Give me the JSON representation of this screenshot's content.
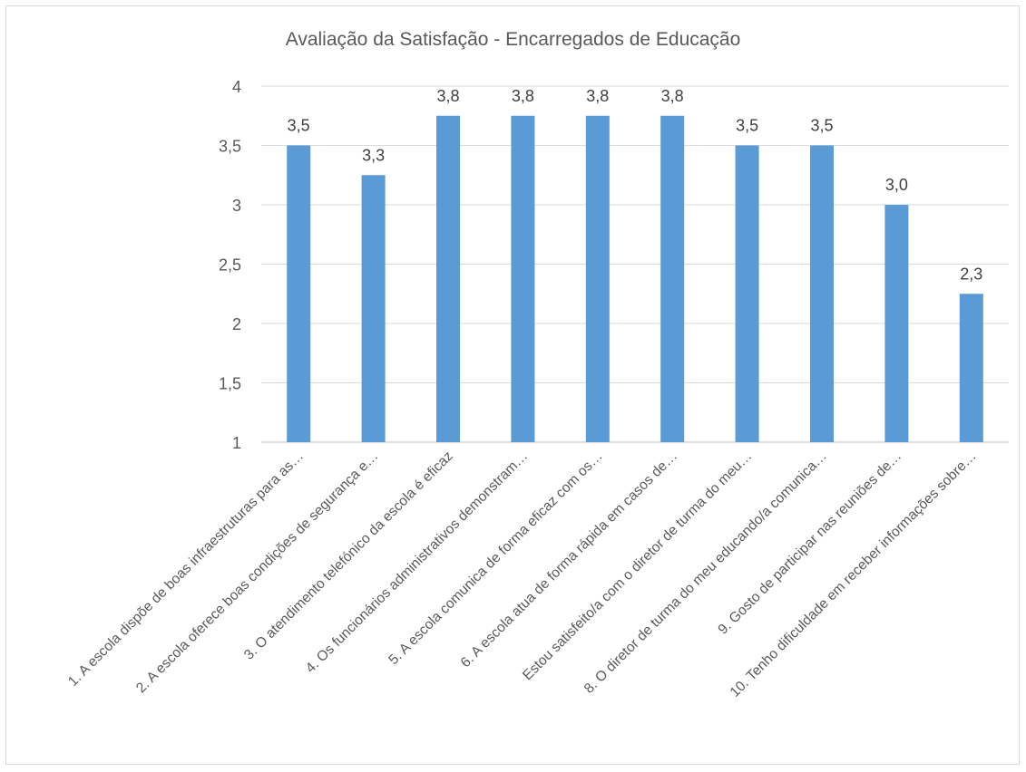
{
  "chart_data": {
    "type": "bar",
    "title": "Avaliação da Satisfação - Encarregados de Educação",
    "xlabel": "",
    "ylabel": "",
    "ylim": [
      1,
      4
    ],
    "yticks": [
      "1",
      "1,5",
      "2",
      "2,5",
      "3",
      "3,5",
      "4"
    ],
    "grid": true,
    "legend": "none",
    "bar_color": "#5B9BD5",
    "categories": [
      "1. A escola dispõe de boas infraestruturas para as…",
      "2. A escola oferece boas condições de segurança e…",
      "3. O atendimento telefónico da escola é eficaz",
      "4. Os funcionários administrativos demonstram…",
      "5. A escola comunica de forma eficaz com os…",
      "6. A escola atua de forma rápida em casos de…",
      "Estou satisfeito/a com o diretor de turma do meu…",
      "8. O diretor de turma do meu educando/a comunica…",
      "9. Gosto de participar nas reuniões de…",
      "10. Tenho dificuldade em receber informações sobre…"
    ],
    "values": [
      3.5,
      3.25,
      3.75,
      3.75,
      3.75,
      3.75,
      3.5,
      3.5,
      3.0,
      2.25
    ],
    "data_labels": [
      "3,5",
      "3,3",
      "3,8",
      "3,8",
      "3,8",
      "3,8",
      "3,5",
      "3,5",
      "3,0",
      "2,3"
    ]
  }
}
